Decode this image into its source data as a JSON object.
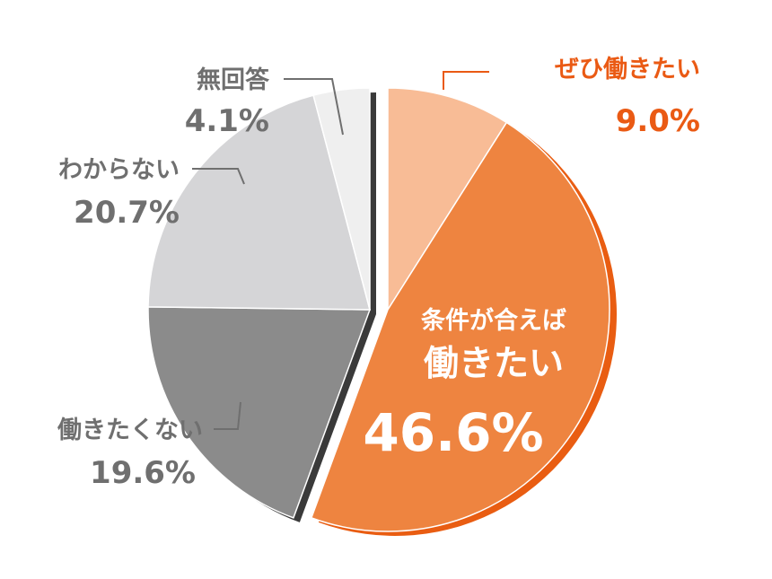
{
  "chart_data": {
    "type": "pie",
    "start_angle": "12 o'clock",
    "direction": "clockwise",
    "slices": [
      {
        "label": "ぜひ働きたい",
        "value": 9.0,
        "value_label": "9.0%",
        "color": "#f8bc96",
        "label_color": "#ea5a14"
      },
      {
        "label_line1": "条件が合えば",
        "label_line2": "働きたい",
        "value": 46.6,
        "value_label": "46.6%",
        "color": "#ee8440",
        "label_color": "#ffffff"
      },
      {
        "label": "働きたくない",
        "value": 19.6,
        "value_label": "19.6%",
        "color": "#8b8b8b",
        "label_color": "#6f6f6f"
      },
      {
        "label": "わからない",
        "value": 20.7,
        "value_label": "20.7%",
        "color": "#d5d5d7",
        "label_color": "#6f6f6f"
      },
      {
        "label": "無回答",
        "value": 4.1,
        "value_label": "4.1%",
        "color": "#efefef",
        "label_color": "#6f6f6f"
      }
    ]
  }
}
